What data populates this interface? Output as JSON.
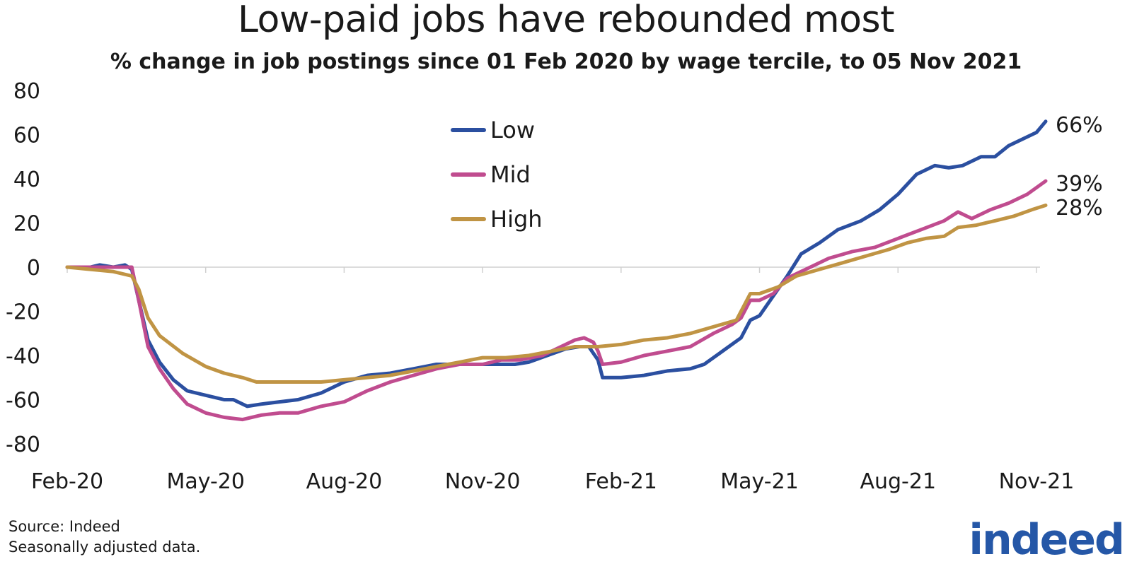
{
  "chart_data": {
    "type": "line",
    "title": "Low-paid jobs have rebounded most",
    "subtitle": "% change in job postings since 01 Feb 2020 by wage tercile, to 05 Nov 2021",
    "xlabel": "",
    "ylabel": "",
    "ylim": [
      -90,
      80
    ],
    "yticks": [
      80,
      60,
      40,
      20,
      0,
      -20,
      -40,
      -60,
      -80
    ],
    "xlim": [
      0,
      21.2
    ],
    "xticks": [
      {
        "label": "Feb-20",
        "value": 0
      },
      {
        "label": "May-20",
        "value": 3
      },
      {
        "label": "Aug-20",
        "value": 6
      },
      {
        "label": "Nov-20",
        "value": 9
      },
      {
        "label": "Feb-21",
        "value": 12
      },
      {
        "label": "May-21",
        "value": 15
      },
      {
        "label": "Aug-21",
        "value": 18
      },
      {
        "label": "Nov-21",
        "value": 21
      }
    ],
    "legend_position": "top-center",
    "series": [
      {
        "name": "Low",
        "color": "#2b4fa0",
        "end_label": "66%",
        "points": [
          [
            0,
            0
          ],
          [
            0.5,
            0
          ],
          [
            0.7,
            1
          ],
          [
            1.0,
            0
          ],
          [
            1.25,
            1
          ],
          [
            1.4,
            -1
          ],
          [
            1.55,
            -15
          ],
          [
            1.75,
            -33
          ],
          [
            2.0,
            -43
          ],
          [
            2.3,
            -51
          ],
          [
            2.6,
            -56
          ],
          [
            3.0,
            -58
          ],
          [
            3.4,
            -60
          ],
          [
            3.6,
            -60
          ],
          [
            3.9,
            -63
          ],
          [
            4.2,
            -62
          ],
          [
            4.6,
            -61
          ],
          [
            5.0,
            -60
          ],
          [
            5.5,
            -57
          ],
          [
            6.0,
            -52
          ],
          [
            6.5,
            -49
          ],
          [
            7.0,
            -48
          ],
          [
            7.5,
            -46
          ],
          [
            8.0,
            -44
          ],
          [
            8.5,
            -44
          ],
          [
            9.0,
            -44
          ],
          [
            9.4,
            -44
          ],
          [
            9.7,
            -44
          ],
          [
            10.0,
            -43
          ],
          [
            10.4,
            -40
          ],
          [
            10.8,
            -37
          ],
          [
            11.1,
            -36
          ],
          [
            11.3,
            -36
          ],
          [
            11.5,
            -42
          ],
          [
            11.6,
            -50
          ],
          [
            12.0,
            -50
          ],
          [
            12.5,
            -49
          ],
          [
            13.0,
            -47
          ],
          [
            13.5,
            -46
          ],
          [
            13.8,
            -44
          ],
          [
            14.2,
            -38
          ],
          [
            14.6,
            -32
          ],
          [
            14.8,
            -24
          ],
          [
            15.0,
            -22
          ],
          [
            15.3,
            -13
          ],
          [
            15.6,
            -4
          ],
          [
            15.9,
            6
          ],
          [
            16.3,
            11
          ],
          [
            16.7,
            17
          ],
          [
            17.2,
            21
          ],
          [
            17.6,
            26
          ],
          [
            18.0,
            33
          ],
          [
            18.4,
            42
          ],
          [
            18.8,
            46
          ],
          [
            19.1,
            45
          ],
          [
            19.4,
            46
          ],
          [
            19.8,
            50
          ],
          [
            20.1,
            50
          ],
          [
            20.4,
            55
          ],
          [
            20.7,
            58
          ],
          [
            21.0,
            61
          ],
          [
            21.2,
            66
          ]
        ]
      },
      {
        "name": "Mid",
        "color": "#c04c8f",
        "end_label": "39%",
        "points": [
          [
            0,
            0
          ],
          [
            0.5,
            0
          ],
          [
            0.8,
            0
          ],
          [
            1.1,
            0
          ],
          [
            1.4,
            0
          ],
          [
            1.55,
            -15
          ],
          [
            1.75,
            -36
          ],
          [
            2.0,
            -46
          ],
          [
            2.3,
            -55
          ],
          [
            2.6,
            -62
          ],
          [
            3.0,
            -66
          ],
          [
            3.4,
            -68
          ],
          [
            3.8,
            -69
          ],
          [
            4.2,
            -67
          ],
          [
            4.6,
            -66
          ],
          [
            5.0,
            -66
          ],
          [
            5.5,
            -63
          ],
          [
            6.0,
            -61
          ],
          [
            6.5,
            -56
          ],
          [
            7.0,
            -52
          ],
          [
            7.5,
            -49
          ],
          [
            8.0,
            -46
          ],
          [
            8.5,
            -44
          ],
          [
            9.0,
            -44
          ],
          [
            9.4,
            -42
          ],
          [
            9.8,
            -42
          ],
          [
            10.3,
            -40
          ],
          [
            10.7,
            -36
          ],
          [
            11.0,
            -33
          ],
          [
            11.2,
            -32
          ],
          [
            11.4,
            -34
          ],
          [
            11.5,
            -38
          ],
          [
            11.6,
            -44
          ],
          [
            12.0,
            -43
          ],
          [
            12.5,
            -40
          ],
          [
            13.0,
            -38
          ],
          [
            13.5,
            -36
          ],
          [
            14.0,
            -30
          ],
          [
            14.4,
            -26
          ],
          [
            14.6,
            -23
          ],
          [
            14.8,
            -15
          ],
          [
            15.0,
            -15
          ],
          [
            15.3,
            -12
          ],
          [
            15.6,
            -5
          ],
          [
            16.0,
            -1
          ],
          [
            16.5,
            4
          ],
          [
            17.0,
            7
          ],
          [
            17.5,
            9
          ],
          [
            18.0,
            13
          ],
          [
            18.5,
            17
          ],
          [
            19.0,
            21
          ],
          [
            19.3,
            25
          ],
          [
            19.6,
            22
          ],
          [
            20.0,
            26
          ],
          [
            20.4,
            29
          ],
          [
            20.8,
            33
          ],
          [
            21.2,
            39
          ]
        ]
      },
      {
        "name": "High",
        "color": "#c09444",
        "end_label": "28%",
        "points": [
          [
            0,
            0
          ],
          [
            0.5,
            -1
          ],
          [
            1.0,
            -2
          ],
          [
            1.4,
            -4
          ],
          [
            1.55,
            -10
          ],
          [
            1.75,
            -23
          ],
          [
            2.0,
            -31
          ],
          [
            2.5,
            -39
          ],
          [
            3.0,
            -45
          ],
          [
            3.4,
            -48
          ],
          [
            3.8,
            -50
          ],
          [
            4.1,
            -52
          ],
          [
            4.5,
            -52
          ],
          [
            5.0,
            -52
          ],
          [
            5.5,
            -52
          ],
          [
            6.0,
            -51
          ],
          [
            6.5,
            -50
          ],
          [
            7.0,
            -49
          ],
          [
            7.5,
            -47
          ],
          [
            8.0,
            -45
          ],
          [
            8.5,
            -43
          ],
          [
            9.0,
            -41
          ],
          [
            9.5,
            -41
          ],
          [
            10.0,
            -40
          ],
          [
            10.5,
            -38
          ],
          [
            11.0,
            -36
          ],
          [
            11.5,
            -36
          ],
          [
            12.0,
            -35
          ],
          [
            12.5,
            -33
          ],
          [
            13.0,
            -32
          ],
          [
            13.5,
            -30
          ],
          [
            14.0,
            -27
          ],
          [
            14.5,
            -24
          ],
          [
            14.8,
            -12
          ],
          [
            15.0,
            -12
          ],
          [
            15.4,
            -9
          ],
          [
            15.8,
            -4
          ],
          [
            16.3,
            -1
          ],
          [
            16.8,
            2
          ],
          [
            17.3,
            5
          ],
          [
            17.8,
            8
          ],
          [
            18.2,
            11
          ],
          [
            18.6,
            13
          ],
          [
            19.0,
            14
          ],
          [
            19.3,
            18
          ],
          [
            19.7,
            19
          ],
          [
            20.1,
            21
          ],
          [
            20.5,
            23
          ],
          [
            20.9,
            26
          ],
          [
            21.2,
            28
          ]
        ]
      }
    ]
  },
  "footer": {
    "source": "Source: Indeed",
    "note": "Seasonally adjusted data."
  },
  "logo_text": "indeed"
}
